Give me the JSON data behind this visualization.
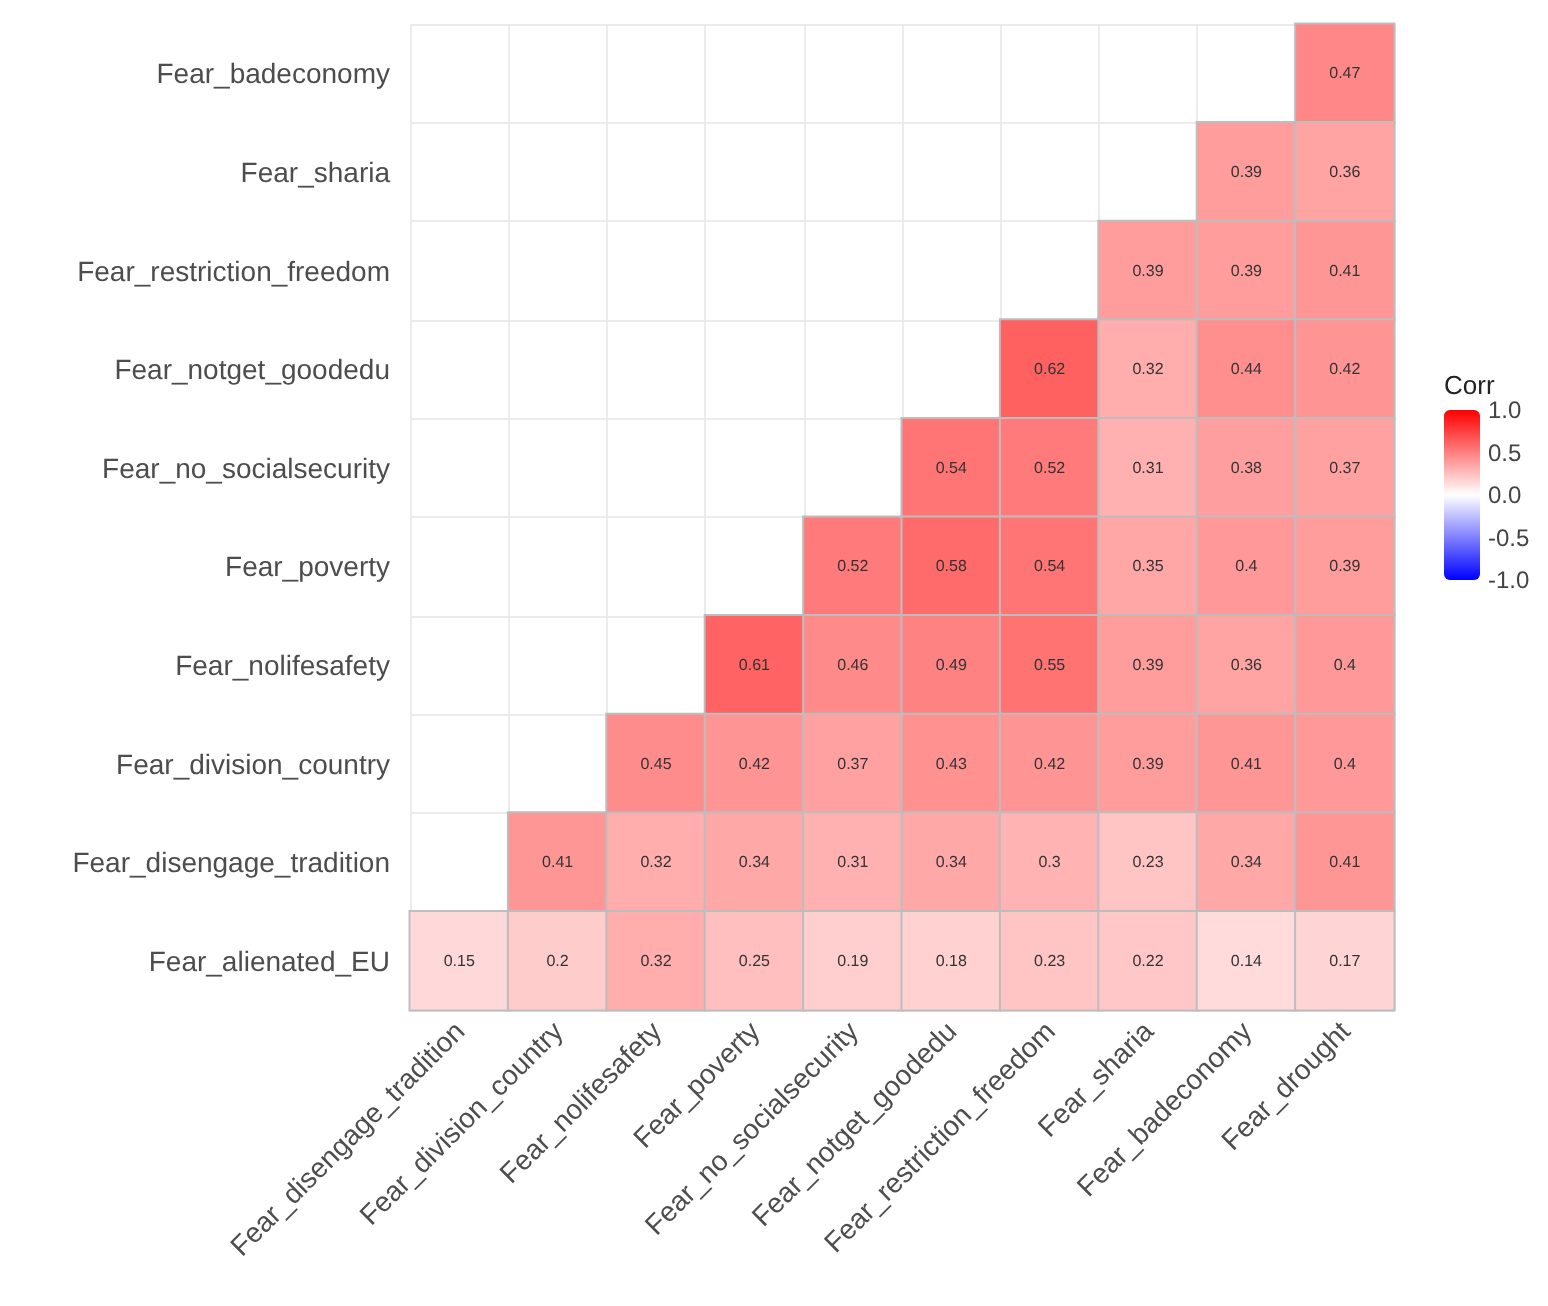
{
  "chart_data": {
    "type": "heatmap",
    "categories": [
      "Fear_disengage_tradition",
      "Fear_division_country",
      "Fear_nolifesafety",
      "Fear_poverty",
      "Fear_no_socialsecurity",
      "Fear_notget_goodedu",
      "Fear_restriction_freedom",
      "Fear_sharia",
      "Fear_badeconomy",
      "Fear_drought"
    ],
    "y_categories": [
      "Fear_badeconomy",
      "Fear_sharia",
      "Fear_restriction_freedom",
      "Fear_notget_goodedu",
      "Fear_no_socialsecurity",
      "Fear_poverty",
      "Fear_nolifesafety",
      "Fear_division_country",
      "Fear_disengage_tradition",
      "Fear_alienated_EU"
    ],
    "cells": [
      [
        null,
        null,
        null,
        null,
        null,
        null,
        null,
        null,
        null,
        0.47
      ],
      [
        null,
        null,
        null,
        null,
        null,
        null,
        null,
        null,
        0.39,
        0.36
      ],
      [
        null,
        null,
        null,
        null,
        null,
        null,
        null,
        0.39,
        0.39,
        0.41
      ],
      [
        null,
        null,
        null,
        null,
        null,
        null,
        0.62,
        0.32,
        0.44,
        0.42
      ],
      [
        null,
        null,
        null,
        null,
        null,
        0.54,
        0.52,
        0.31,
        0.38,
        0.37
      ],
      [
        null,
        null,
        null,
        null,
        0.52,
        0.58,
        0.54,
        0.35,
        0.4,
        0.39
      ],
      [
        null,
        null,
        null,
        0.61,
        0.46,
        0.49,
        0.55,
        0.39,
        0.36,
        0.4
      ],
      [
        null,
        null,
        0.45,
        0.42,
        0.37,
        0.43,
        0.42,
        0.39,
        0.41,
        0.4
      ],
      [
        null,
        0.41,
        0.32,
        0.34,
        0.31,
        0.34,
        0.3,
        0.23,
        0.34,
        0.41
      ],
      [
        0.15,
        0.2,
        0.32,
        0.25,
        0.19,
        0.18,
        0.23,
        0.22,
        0.14,
        0.17
      ]
    ],
    "clabel": "Corr",
    "clim": [
      -1,
      1
    ],
    "cticks": [
      {
        "value": -1,
        "label": "-1.0"
      },
      {
        "value": -0.5,
        "label": "-0.5"
      },
      {
        "value": 0,
        "label": "0.0"
      },
      {
        "value": 0.5,
        "label": "0.5"
      },
      {
        "value": 1,
        "label": "1.0"
      }
    ],
    "colors": [
      "#0000ff",
      "#ffffff",
      "#ff0000"
    ],
    "data_labels": true,
    "grid": true
  }
}
